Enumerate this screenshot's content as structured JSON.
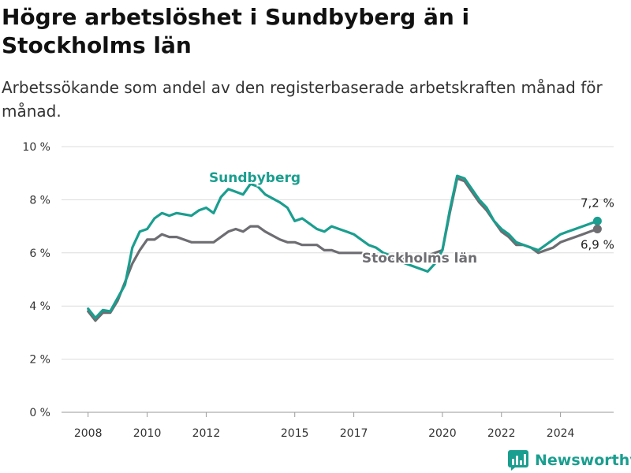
{
  "title": "Högre arbetslöshet i Sundbyberg än i Stockholms län",
  "subtitle": "Arbetssökande som andel av den registerbaserade arbetskraften månad för månad.",
  "brand": {
    "name": "Newsworthy",
    "icon": "bar-chart-icon"
  },
  "colors": {
    "sundbyberg": "#1a9e8f",
    "stockholm": "#6d6d72",
    "grid": "#dcdcdc",
    "text": "#222222"
  },
  "chart_data": {
    "type": "line",
    "xlabel": "",
    "ylabel": "",
    "xlim": [
      2007.1,
      2025.8
    ],
    "ylim": [
      0,
      10
    ],
    "y_ticks": [
      0,
      2,
      4,
      6,
      8,
      10
    ],
    "y_tick_labels": [
      "0 %",
      "2 %",
      "4 %",
      "6 %",
      "8 %",
      "10 %"
    ],
    "x_ticks": [
      2008,
      2010,
      2012,
      2015,
      2017,
      2020,
      2022,
      2024
    ],
    "x_tick_labels": [
      "2008",
      "2010",
      "2012",
      "2015",
      "2017",
      "2020",
      "2022",
      "2024"
    ],
    "grid": true,
    "series": [
      {
        "name": "Sundbyberg",
        "color": "#1a9e8f",
        "end_label": "7,2 %",
        "points": [
          [
            2008.0,
            3.9
          ],
          [
            2008.25,
            3.55
          ],
          [
            2008.5,
            3.85
          ],
          [
            2008.75,
            3.8
          ],
          [
            2009.0,
            4.3
          ],
          [
            2009.25,
            4.8
          ],
          [
            2009.5,
            6.2
          ],
          [
            2009.75,
            6.8
          ],
          [
            2010.0,
            6.9
          ],
          [
            2010.25,
            7.3
          ],
          [
            2010.5,
            7.5
          ],
          [
            2010.75,
            7.4
          ],
          [
            2011.0,
            7.5
          ],
          [
            2011.5,
            7.4
          ],
          [
            2011.75,
            7.6
          ],
          [
            2012.0,
            7.7
          ],
          [
            2012.25,
            7.5
          ],
          [
            2012.5,
            8.1
          ],
          [
            2012.75,
            8.4
          ],
          [
            2013.0,
            8.3
          ],
          [
            2013.25,
            8.2
          ],
          [
            2013.5,
            8.6
          ],
          [
            2013.75,
            8.5
          ],
          [
            2014.0,
            8.2
          ],
          [
            2014.5,
            7.9
          ],
          [
            2014.75,
            7.7
          ],
          [
            2015.0,
            7.2
          ],
          [
            2015.25,
            7.3
          ],
          [
            2015.5,
            7.1
          ],
          [
            2015.75,
            6.9
          ],
          [
            2016.0,
            6.8
          ],
          [
            2016.25,
            7.0
          ],
          [
            2016.5,
            6.9
          ],
          [
            2016.75,
            6.8
          ],
          [
            2017.0,
            6.7
          ],
          [
            2017.25,
            6.5
          ],
          [
            2017.5,
            6.3
          ],
          [
            2017.75,
            6.2
          ],
          [
            2018.0,
            6.0
          ],
          [
            2018.25,
            5.9
          ],
          [
            2018.5,
            5.7
          ],
          [
            2018.75,
            5.6
          ],
          [
            2019.0,
            5.5
          ],
          [
            2019.25,
            5.4
          ],
          [
            2019.5,
            5.3
          ],
          [
            2019.75,
            5.6
          ],
          [
            2020.0,
            6.1
          ],
          [
            2020.25,
            7.6
          ],
          [
            2020.5,
            8.9
          ],
          [
            2020.75,
            8.8
          ],
          [
            2021.0,
            8.4
          ],
          [
            2021.25,
            8.0
          ],
          [
            2021.5,
            7.7
          ],
          [
            2021.75,
            7.2
          ],
          [
            2022.0,
            6.9
          ],
          [
            2022.25,
            6.7
          ],
          [
            2022.5,
            6.4
          ],
          [
            2022.75,
            6.3
          ],
          [
            2023.0,
            6.2
          ],
          [
            2023.25,
            6.1
          ],
          [
            2023.5,
            6.3
          ],
          [
            2023.75,
            6.5
          ],
          [
            2024.0,
            6.7
          ],
          [
            2024.25,
            6.8
          ],
          [
            2024.5,
            6.9
          ],
          [
            2024.75,
            7.0
          ],
          [
            2025.0,
            7.1
          ],
          [
            2025.25,
            7.2
          ]
        ]
      },
      {
        "name": "Stockholms län",
        "color": "#6d6d72",
        "end_label": "6,9 %",
        "points": [
          [
            2008.0,
            3.8
          ],
          [
            2008.25,
            3.45
          ],
          [
            2008.5,
            3.75
          ],
          [
            2008.75,
            3.75
          ],
          [
            2009.0,
            4.2
          ],
          [
            2009.25,
            4.9
          ],
          [
            2009.5,
            5.6
          ],
          [
            2009.75,
            6.1
          ],
          [
            2010.0,
            6.5
          ],
          [
            2010.25,
            6.5
          ],
          [
            2010.5,
            6.7
          ],
          [
            2010.75,
            6.6
          ],
          [
            2011.0,
            6.6
          ],
          [
            2011.5,
            6.4
          ],
          [
            2011.75,
            6.4
          ],
          [
            2012.0,
            6.4
          ],
          [
            2012.25,
            6.4
          ],
          [
            2012.5,
            6.6
          ],
          [
            2012.75,
            6.8
          ],
          [
            2013.0,
            6.9
          ],
          [
            2013.25,
            6.8
          ],
          [
            2013.5,
            7.0
          ],
          [
            2013.75,
            7.0
          ],
          [
            2014.0,
            6.8
          ],
          [
            2014.5,
            6.5
          ],
          [
            2014.75,
            6.4
          ],
          [
            2015.0,
            6.4
          ],
          [
            2015.25,
            6.3
          ],
          [
            2015.5,
            6.3
          ],
          [
            2015.75,
            6.3
          ],
          [
            2016.0,
            6.1
          ],
          [
            2016.25,
            6.1
          ],
          [
            2016.5,
            6.0
          ],
          [
            2016.75,
            6.0
          ],
          [
            2017.0,
            6.0
          ],
          [
            2017.25,
            6.0
          ],
          [
            2017.5,
            5.9
          ],
          [
            2017.75,
            5.9
          ],
          [
            2018.0,
            5.8
          ],
          [
            2018.25,
            5.8
          ],
          [
            2018.5,
            5.8
          ],
          [
            2018.75,
            5.8
          ],
          [
            2019.0,
            5.8
          ],
          [
            2019.25,
            5.8
          ],
          [
            2019.5,
            5.9
          ],
          [
            2019.75,
            6.0
          ],
          [
            2020.0,
            6.1
          ],
          [
            2020.25,
            7.5
          ],
          [
            2020.5,
            8.8
          ],
          [
            2020.75,
            8.7
          ],
          [
            2021.0,
            8.3
          ],
          [
            2021.25,
            7.9
          ],
          [
            2021.5,
            7.6
          ],
          [
            2021.75,
            7.2
          ],
          [
            2022.0,
            6.8
          ],
          [
            2022.25,
            6.6
          ],
          [
            2022.5,
            6.3
          ],
          [
            2022.75,
            6.3
          ],
          [
            2023.0,
            6.2
          ],
          [
            2023.25,
            6.0
          ],
          [
            2023.5,
            6.1
          ],
          [
            2023.75,
            6.2
          ],
          [
            2024.0,
            6.4
          ],
          [
            2024.25,
            6.5
          ],
          [
            2024.5,
            6.6
          ],
          [
            2024.75,
            6.7
          ],
          [
            2025.0,
            6.8
          ],
          [
            2025.25,
            6.9
          ]
        ]
      }
    ]
  }
}
